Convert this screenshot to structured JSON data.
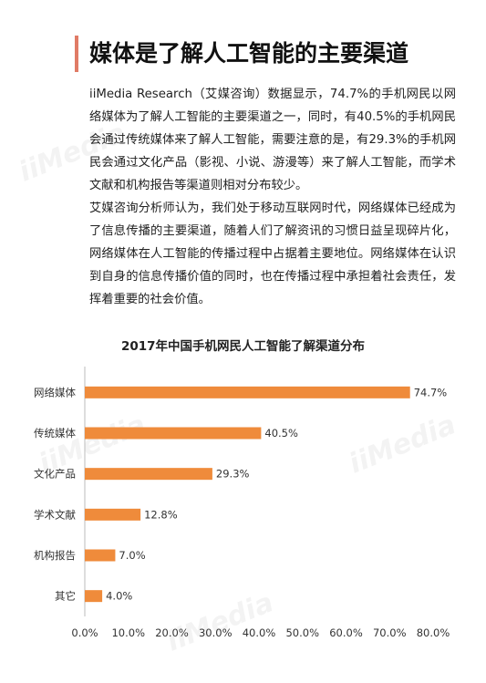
{
  "article": {
    "heading": "媒体是了解人工智能的主要渠道",
    "paragraph1": "iiMedia Research（艾媒咨询）数据显示，74.7%的手机网民以网络媒体为了解人工智能的主要渠道之一，同时，有40.5%的手机网民会通过传统媒体来了解人工智能，需要注意的是，有29.3%的手机网民会通过文化产品（影视、小说、游漫等）来了解人工智能，而学术文献和机构报告等渠道则相对分布较少。",
    "paragraph2": "艾媒咨询分析师认为，我们处于移动互联网时代，网络媒体已经成为了信息传播的主要渠道，随着人们了解资讯的习惯日益呈现碎片化，网络媒体在人工智能的传播过程中占据着主要地位。网络媒体在认识到自身的信息传播价值的同时，也在传播过程中承担着社会责任，发挥着重要的社会价值。"
  },
  "watermark": {
    "text": "iiMedia"
  },
  "colors": {
    "accent": "#e07b66",
    "bar": "#ef8b3b"
  },
  "chart_data": {
    "type": "bar",
    "orientation": "horizontal",
    "title": "2017年中国手机网民人工智能了解渠道分布",
    "categories": [
      "网络媒体",
      "传统媒体",
      "文化产品",
      "学术文献",
      "机构报告",
      "其它"
    ],
    "values": [
      74.7,
      40.5,
      29.3,
      12.8,
      7.0,
      4.0
    ],
    "value_labels": [
      "74.7%",
      "40.5%",
      "29.3%",
      "12.8%",
      "7.0%",
      "4.0%"
    ],
    "xlim": [
      0,
      80
    ],
    "xticks": [
      0,
      10,
      20,
      30,
      40,
      50,
      60,
      70,
      80
    ],
    "xtick_labels": [
      "0.0%",
      "10.0%",
      "20.0%",
      "30.0%",
      "40.0%",
      "50.0%",
      "60.0%",
      "70.0%",
      "80.0%"
    ],
    "grid": false,
    "legend": "none"
  }
}
